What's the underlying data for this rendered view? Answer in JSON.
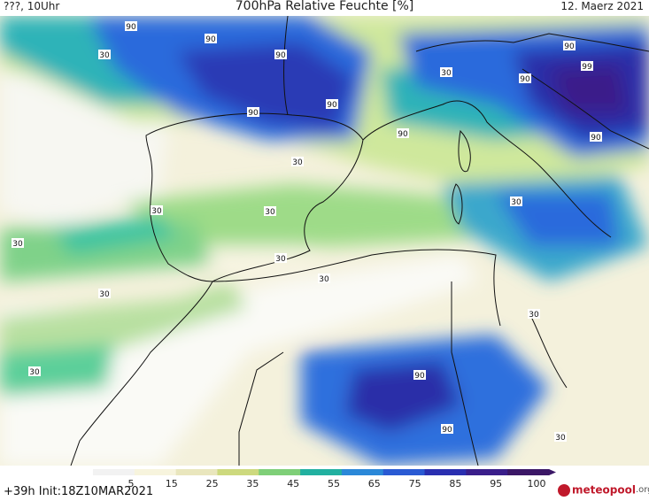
{
  "header": {
    "left": "???, 10Uhr",
    "title": "700hPa Relative Feuchte [%]",
    "right": "12. Maerz 2021"
  },
  "footer": {
    "left": "+39h  Init:18Z10MAR2021",
    "logo_name": "meteopool",
    "logo_tld": ".org"
  },
  "colorbar": {
    "labels": [
      "5",
      "15",
      "25",
      "35",
      "45",
      "55",
      "65",
      "75",
      "85",
      "95",
      "100"
    ],
    "colors": [
      "#f2f2f2",
      "#f7f4dd",
      "#e9e6bd",
      "#cdd97e",
      "#7fcf78",
      "#22b0a0",
      "#2b88d8",
      "#2a5ad3",
      "#2a2fb0",
      "#3a1e8a",
      "#3b1766"
    ]
  },
  "map_labels": [
    "90",
    "90",
    "90",
    "30",
    "90",
    "90",
    "90",
    "90",
    "99",
    "90",
    "90",
    "30",
    "30",
    "30",
    "30",
    "30",
    "30",
    "30",
    "30",
    "30",
    "30",
    "30",
    "30",
    "90",
    "90",
    "30"
  ]
}
